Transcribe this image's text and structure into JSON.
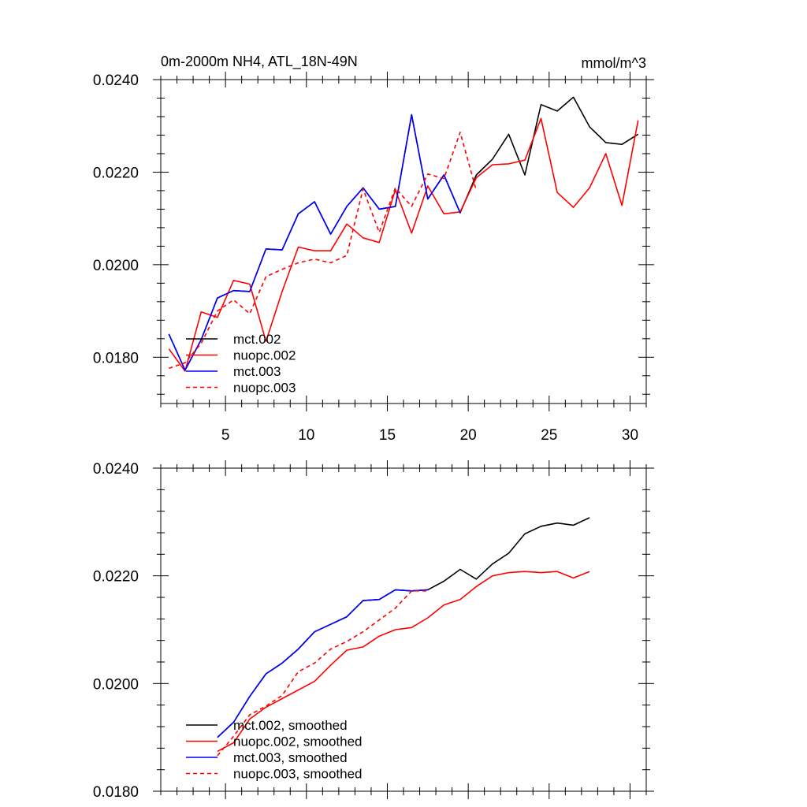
{
  "chart_data": [
    {
      "type": "line",
      "title": "0m-2000m NH4, ATL_18N-49N",
      "units": "mmol/m^3",
      "xlim": [
        1,
        31
      ],
      "ylim": [
        0.017,
        0.024
      ],
      "x_ticks": [
        5,
        10,
        15,
        20,
        25,
        30
      ],
      "y_ticks": [
        0.018,
        0.02,
        0.022,
        0.024
      ],
      "y_tick_labels": [
        "0.0180",
        "0.0200",
        "0.0220",
        "0.0240"
      ],
      "legend_position": "bottom-left",
      "series": [
        {
          "name": "mct.002",
          "color": "#000000",
          "dash": "solid",
          "x": [
            1.5,
            2.5,
            3.5,
            4.5,
            5.5,
            6.5,
            7.5,
            8.5,
            9.5,
            10.5,
            11.5,
            12.5,
            13.5,
            14.5,
            15.5,
            16.5,
            17.5,
            18.5,
            19.5,
            20.5,
            21.5,
            22.5,
            23.5,
            24.5,
            25.5,
            26.5,
            27.5,
            28.5,
            29.5,
            30.5
          ],
          "y": [
            0.0185,
            0.01772,
            0.01838,
            0.01928,
            0.01944,
            0.01942,
            0.02034,
            0.02032,
            0.0211,
            0.02136,
            0.02066,
            0.02126,
            0.02166,
            0.0212,
            0.02126,
            0.02324,
            0.02142,
            0.02194,
            0.02112,
            0.02194,
            0.02228,
            0.02282,
            0.02194,
            0.02346,
            0.02332,
            0.02362,
            0.02298,
            0.02264,
            0.0226,
            0.02282
          ]
        },
        {
          "name": "nuopc.002",
          "color": "#ff0000",
          "dash": "solid",
          "x": [
            1.5,
            2.5,
            3.5,
            4.5,
            5.5,
            6.5,
            7.5,
            8.5,
            9.5,
            10.5,
            11.5,
            12.5,
            13.5,
            14.5,
            15.5,
            16.5,
            17.5,
            18.5,
            19.5,
            20.5,
            21.5,
            22.5,
            23.5,
            24.5,
            25.5,
            26.5,
            27.5,
            28.5,
            29.5,
            30.5
          ],
          "y": [
            0.01818,
            0.0177,
            0.01898,
            0.01886,
            0.01966,
            0.01958,
            0.01834,
            0.01942,
            0.02038,
            0.0203,
            0.0203,
            0.02088,
            0.02058,
            0.02048,
            0.02162,
            0.02068,
            0.0217,
            0.0211,
            0.02114,
            0.02188,
            0.02216,
            0.02218,
            0.02226,
            0.02316,
            0.02156,
            0.02124,
            0.02166,
            0.0224,
            0.02128,
            0.02312
          ]
        },
        {
          "name": "mct.003",
          "color": "#0000ff",
          "dash": "solid",
          "x": [
            1.5,
            2.5,
            3.5,
            4.5,
            5.5,
            6.5,
            7.5,
            8.5,
            9.5,
            10.5,
            11.5,
            12.5,
            13.5,
            14.5,
            15.5,
            16.5,
            17.5,
            18.5,
            19.5
          ],
          "y": [
            0.0185,
            0.01772,
            0.01838,
            0.01928,
            0.01944,
            0.01942,
            0.02034,
            0.02032,
            0.0211,
            0.02136,
            0.02066,
            0.02126,
            0.02166,
            0.0212,
            0.02126,
            0.02324,
            0.02142,
            0.02194,
            0.02112
          ]
        },
        {
          "name": "nuopc.003",
          "color": "#ff0000",
          "dash": "dashed",
          "x": [
            1.5,
            2.5,
            3.5,
            4.5,
            5.5,
            6.5,
            7.5,
            8.5,
            9.5,
            10.5,
            11.5,
            12.5,
            13.5,
            14.5,
            15.5,
            16.5,
            17.5,
            18.5,
            19.5,
            20.5
          ],
          "y": [
            0.01776,
            0.01788,
            0.0183,
            0.019,
            0.01924,
            0.01894,
            0.01974,
            0.0199,
            0.02004,
            0.02012,
            0.02004,
            0.0202,
            0.02164,
            0.0207,
            0.02166,
            0.02126,
            0.02196,
            0.02186,
            0.02286,
            0.0216
          ]
        }
      ]
    },
    {
      "type": "line",
      "title": "",
      "xlim": [
        1,
        31
      ],
      "ylim": [
        0.018,
        0.024
      ],
      "x_ticks": [
        5,
        10,
        15,
        20,
        25,
        30
      ],
      "y_ticks": [
        0.018,
        0.02,
        0.022,
        0.024
      ],
      "y_tick_labels": [
        "0.0180",
        "0.0200",
        "0.0220",
        "0.0240"
      ],
      "legend_position": "bottom-left",
      "series": [
        {
          "name": "mct.002, smoothed",
          "color": "#000000",
          "dash": "solid",
          "x": [
            4.5,
            5.5,
            6.5,
            7.5,
            8.5,
            9.5,
            10.5,
            11.5,
            12.5,
            13.5,
            14.5,
            15.5,
            16.5,
            17.5,
            18.5,
            19.5,
            20.5,
            21.5,
            22.5,
            23.5,
            24.5,
            25.5,
            26.5,
            27.5
          ],
          "y": [
            0.019,
            0.01928,
            0.01976,
            0.02018,
            0.02038,
            0.02064,
            0.02096,
            0.0211,
            0.02124,
            0.02154,
            0.02156,
            0.02174,
            0.02172,
            0.02174,
            0.0219,
            0.02212,
            0.02194,
            0.02222,
            0.02242,
            0.02278,
            0.02292,
            0.02298,
            0.02294,
            0.02308
          ]
        },
        {
          "name": "nuopc.002, smoothed",
          "color": "#ff0000",
          "dash": "solid",
          "x": [
            4.5,
            5.5,
            6.5,
            7.5,
            8.5,
            9.5,
            10.5,
            11.5,
            12.5,
            13.5,
            14.5,
            15.5,
            16.5,
            17.5,
            18.5,
            19.5,
            20.5,
            21.5,
            22.5,
            23.5,
            24.5,
            25.5,
            26.5,
            27.5
          ],
          "y": [
            0.01874,
            0.0189,
            0.01934,
            0.01956,
            0.01972,
            0.01988,
            0.02004,
            0.02034,
            0.02062,
            0.02068,
            0.02088,
            0.021,
            0.02104,
            0.02122,
            0.02146,
            0.02156,
            0.0218,
            0.022,
            0.02206,
            0.02208,
            0.02206,
            0.02208,
            0.02196,
            0.02208
          ]
        },
        {
          "name": "mct.003, smoothed",
          "color": "#0000ff",
          "dash": "solid",
          "x": [
            4.5,
            5.5,
            6.5,
            7.5,
            8.5,
            9.5,
            10.5,
            11.5,
            12.5,
            13.5,
            14.5,
            15.5,
            16.5,
            17.5
          ],
          "y": [
            0.019,
            0.01928,
            0.01976,
            0.02018,
            0.02038,
            0.02064,
            0.02096,
            0.0211,
            0.02124,
            0.02154,
            0.02156,
            0.02174,
            0.02172,
            0.02174
          ]
        },
        {
          "name": "nuopc.003, smoothed",
          "color": "#ff0000",
          "dash": "dashed",
          "x": [
            4.5,
            5.5,
            6.5,
            7.5,
            8.5,
            9.5,
            10.5,
            11.5,
            12.5,
            13.5,
            14.5,
            15.5,
            16.5,
            17.5
          ],
          "y": [
            0.01866,
            0.01902,
            0.01942,
            0.01958,
            0.01978,
            0.02022,
            0.02038,
            0.02064,
            0.02078,
            0.02096,
            0.02118,
            0.0214,
            0.02172,
            0.02172
          ]
        }
      ]
    }
  ]
}
